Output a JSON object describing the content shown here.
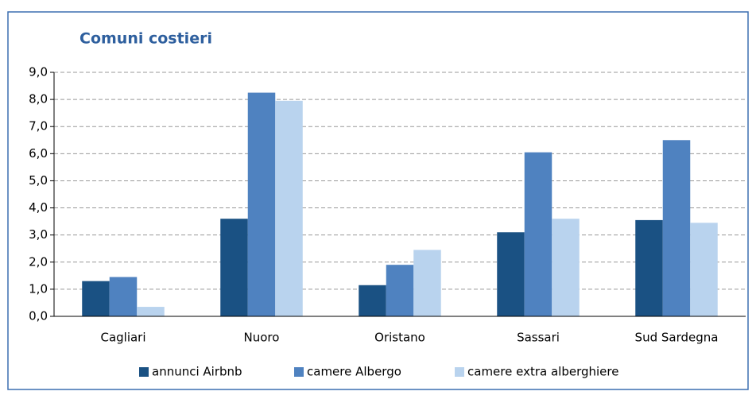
{
  "chart_data": {
    "type": "bar",
    "title": "Comuni costieri",
    "categories": [
      "Cagliari",
      "Nuoro",
      "Oristano",
      "Sassari",
      "Sud Sardegna"
    ],
    "series": [
      {
        "name": "annunci Airbnb",
        "color": "#1a5183",
        "values": [
          1.3,
          3.6,
          1.15,
          3.1,
          3.55
        ]
      },
      {
        "name": "camere Albergo",
        "color": "#4f82c0",
        "values": [
          1.45,
          8.25,
          1.9,
          6.05,
          6.5
        ]
      },
      {
        "name": "camere extra alberghiere",
        "color": "#b9d3ee",
        "values": [
          0.35,
          7.95,
          2.45,
          3.6,
          3.45
        ]
      }
    ],
    "ylim": [
      0,
      9
    ],
    "yticks": [
      {
        "value": 0,
        "label": "0,0"
      },
      {
        "value": 1,
        "label": "1,0"
      },
      {
        "value": 2,
        "label": "2,0"
      },
      {
        "value": 3,
        "label": "3,0"
      },
      {
        "value": 4,
        "label": "4,0"
      },
      {
        "value": 5,
        "label": "5,0"
      },
      {
        "value": 6,
        "label": "6,0"
      },
      {
        "value": 7,
        "label": "7,0"
      },
      {
        "value": 8,
        "label": "8,0"
      },
      {
        "value": 9,
        "label": "9,0"
      }
    ],
    "grid": true,
    "legend": "bottom"
  }
}
